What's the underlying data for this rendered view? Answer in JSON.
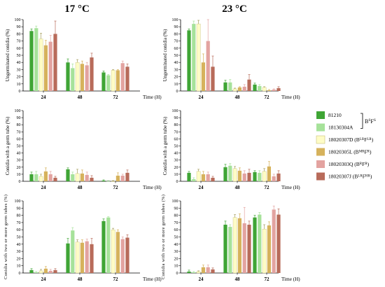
{
  "titles": [
    "17 °C",
    "23 °C"
  ],
  "legend": {
    "items": [
      {
        "label": "81210",
        "color": "#3fa535"
      },
      {
        "label": "18130304A",
        "color": "#a6e29a"
      },
      {
        "label": "18020307D",
        "sup": "LR",
        "sup2": "LR",
        "prefix": "(B",
        "mid": "F",
        "suffix": ")",
        "color": "#fefcc6"
      },
      {
        "label": "18020305L",
        "sup": "MR",
        "sup2": "R",
        "prefix": "(B",
        "mid": "F",
        "suffix": ")",
        "color": "#d6b25c"
      },
      {
        "label": "18020303Q",
        "sup": "R",
        "sup2": "R",
        "prefix": "(B",
        "mid": "F",
        "suffix": ")",
        "color": "#e3a3a0"
      },
      {
        "label": "18020307J",
        "sup": "LR",
        "sup2": "HR",
        "prefix": "(B",
        "mid": "F",
        "suffix": ")",
        "color": "#b86b5a"
      }
    ],
    "bracket_label": {
      "b": "B",
      "b_sup": "S",
      "f": "F",
      "f_sup": "S"
    }
  },
  "chart_data": [
    {
      "type": "bar",
      "id": "ungerminated-17",
      "ylabel": "Ungerminated conidia (%)",
      "xlabel": "Time (H)",
      "categories": [
        "24",
        "48",
        "72"
      ],
      "ylim": [
        0,
        100
      ],
      "yticks": [
        0,
        10,
        20,
        30,
        40,
        50,
        60,
        70,
        80,
        90,
        100
      ],
      "series": [
        {
          "name": "81210",
          "values": [
            84,
            40,
            26
          ],
          "errors": [
            3,
            5,
            2
          ]
        },
        {
          "name": "18130304A",
          "values": [
            88,
            32,
            22
          ],
          "errors": [
            3,
            6,
            1
          ]
        },
        {
          "name": "18020307D",
          "values": [
            73,
            40,
            29
          ],
          "errors": [
            8,
            4,
            1
          ]
        },
        {
          "name": "18020305L",
          "values": [
            64,
            38,
            29
          ],
          "errors": [
            7,
            4,
            1
          ]
        },
        {
          "name": "18020303Q",
          "values": [
            69,
            36,
            39
          ],
          "errors": [
            9,
            4,
            3
          ]
        },
        {
          "name": "18020307J",
          "values": [
            80,
            47,
            34
          ],
          "errors": [
            18,
            6,
            4
          ]
        }
      ]
    },
    {
      "type": "bar",
      "id": "ungerminated-23",
      "ylabel": "Ungerminated conidia (%)",
      "xlabel": "Time (H)",
      "categories": [
        "24",
        "48",
        "72"
      ],
      "ylim": [
        0,
        100
      ],
      "yticks": [
        0,
        10,
        20,
        30,
        40,
        50,
        60,
        70,
        80,
        90,
        100
      ],
      "series": [
        {
          "name": "81210",
          "values": [
            85,
            12,
            9
          ],
          "errors": [
            2,
            3,
            2
          ]
        },
        {
          "name": "18130304A",
          "values": [
            94,
            12,
            7
          ],
          "errors": [
            4,
            4,
            2
          ]
        },
        {
          "name": "18020307D",
          "values": [
            94,
            3,
            5
          ],
          "errors": [
            5,
            1,
            1
          ]
        },
        {
          "name": "18020305L",
          "values": [
            40,
            5,
            1
          ],
          "errors": [
            12,
            1,
            1
          ]
        },
        {
          "name": "18020303Q",
          "values": [
            70,
            6,
            2
          ],
          "errors": [
            30,
            3,
            1
          ]
        },
        {
          "name": "18020307J",
          "values": [
            34,
            16,
            4
          ],
          "errors": [
            15,
            7,
            2
          ]
        }
      ]
    },
    {
      "type": "bar",
      "id": "germ-tube-17",
      "ylabel": "Conidia with a germ tube (%)",
      "xlabel": "Time (H)",
      "categories": [
        "24",
        "48",
        "72"
      ],
      "ylim": [
        0,
        100
      ],
      "yticks": [
        0,
        10,
        20,
        30,
        40,
        50,
        60,
        70,
        80,
        90,
        100
      ],
      "series": [
        {
          "name": "81210",
          "values": [
            10,
            17,
            1
          ],
          "errors": [
            3,
            2,
            1
          ]
        },
        {
          "name": "18130304A",
          "values": [
            10,
            10,
            0
          ],
          "errors": [
            4,
            3,
            1
          ]
        },
        {
          "name": "18020307D",
          "values": [
            7,
            11,
            0
          ],
          "errors": [
            3,
            6,
            1
          ]
        },
        {
          "name": "18020305L",
          "values": [
            14,
            11,
            8
          ],
          "errors": [
            5,
            5,
            4
          ]
        },
        {
          "name": "18020303Q",
          "values": [
            10,
            9,
            8
          ],
          "errors": [
            4,
            4,
            2
          ]
        },
        {
          "name": "18020307J",
          "values": [
            5,
            5,
            12
          ],
          "errors": [
            2,
            3,
            4
          ]
        }
      ]
    },
    {
      "type": "bar",
      "id": "germ-tube-23",
      "ylabel": "Conidia with a germ tube (%)",
      "xlabel": "Time (H)",
      "categories": [
        "24",
        "48",
        "72"
      ],
      "ylim": [
        0,
        100
      ],
      "yticks": [
        0,
        10,
        20,
        30,
        40,
        50,
        60,
        70,
        80,
        90,
        100
      ],
      "series": [
        {
          "name": "81210",
          "values": [
            12,
            20,
            13
          ],
          "errors": [
            2,
            4,
            2
          ]
        },
        {
          "name": "18130304A",
          "values": [
            3,
            22,
            12
          ],
          "errors": [
            2,
            3,
            3
          ]
        },
        {
          "name": "18020307D",
          "values": [
            14,
            18,
            14
          ],
          "errors": [
            3,
            3,
            4
          ]
        },
        {
          "name": "18020305L",
          "values": [
            10,
            15,
            21
          ],
          "errors": [
            4,
            4,
            7
          ]
        },
        {
          "name": "18020303Q",
          "values": [
            10,
            11,
            7
          ],
          "errors": [
            3,
            4,
            3
          ]
        },
        {
          "name": "18020307J",
          "values": [
            5,
            12,
            11
          ],
          "errors": [
            2,
            5,
            4
          ]
        }
      ]
    },
    {
      "type": "bar",
      "id": "two-or-more-17",
      "ylabel": "Conidia with two or more germ tubes (%)",
      "xlabel": "Time (H)",
      "categories": [
        "24",
        "48",
        "72"
      ],
      "ylim": [
        0,
        100
      ],
      "yticks": [
        0,
        10,
        20,
        30,
        40,
        50,
        60,
        70,
        80,
        90,
        100
      ],
      "series": [
        {
          "name": "81210",
          "values": [
            4,
            41,
            72
          ],
          "errors": [
            2,
            7,
            3
          ]
        },
        {
          "name": "18130304A",
          "values": [
            1,
            59,
            77
          ],
          "errors": [
            1,
            4,
            1
          ]
        },
        {
          "name": "18020307D",
          "values": [
            3,
            43,
            60
          ],
          "errors": [
            2,
            3,
            2
          ]
        },
        {
          "name": "18020305L",
          "values": [
            6,
            42,
            57
          ],
          "errors": [
            3,
            4,
            3
          ]
        },
        {
          "name": "18020303Q",
          "values": [
            3,
            44,
            47
          ],
          "errors": [
            2,
            3,
            3
          ]
        },
        {
          "name": "18020307J",
          "values": [
            4,
            40,
            49
          ],
          "errors": [
            2,
            8,
            4
          ]
        }
      ]
    },
    {
      "type": "bar",
      "id": "two-or-more-23",
      "ylabel": "Conidia with two or more germ tubes (%)",
      "xlabel": "Time (H)",
      "categories": [
        "24",
        "48",
        "72"
      ],
      "ylim": [
        0,
        100
      ],
      "yticks": [
        0,
        10,
        20,
        30,
        40,
        50,
        60,
        70,
        80,
        90,
        100
      ],
      "series": [
        {
          "name": "81210",
          "values": [
            2,
            67,
            77
          ],
          "errors": [
            2,
            5,
            3
          ]
        },
        {
          "name": "18130304A",
          "values": [
            1,
            64,
            81
          ],
          "errors": [
            1,
            3,
            3
          ]
        },
        {
          "name": "18020307D",
          "values": [
            2,
            77,
            61
          ],
          "errors": [
            1,
            4,
            6
          ]
        },
        {
          "name": "18020305L",
          "values": [
            8,
            76,
            66
          ],
          "errors": [
            3,
            6,
            5
          ]
        },
        {
          "name": "18020303Q",
          "values": [
            8,
            69,
            88
          ],
          "errors": [
            3,
            22,
            5
          ]
        },
        {
          "name": "18020307J",
          "values": [
            5,
            67,
            81
          ],
          "errors": [
            2,
            5,
            8
          ]
        }
      ]
    }
  ]
}
